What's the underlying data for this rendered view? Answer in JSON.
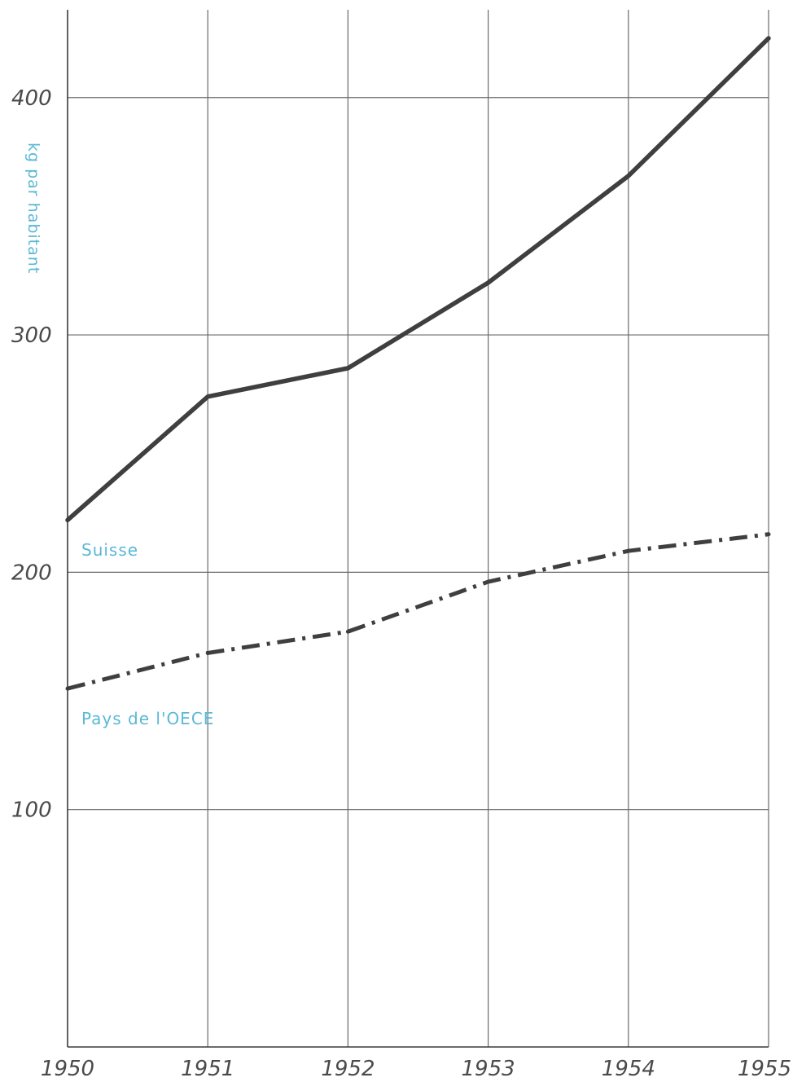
{
  "chart_data": {
    "type": "line",
    "title": "",
    "xlabel": "",
    "ylabel": "kg par habitant",
    "x": [
      1950,
      1951,
      1952,
      1953,
      1954,
      1955
    ],
    "x_tick_labels": [
      "1950",
      "1951",
      "1952",
      "1953",
      "1954",
      "1955"
    ],
    "y_ticks": [
      100,
      200,
      300,
      400
    ],
    "y_tick_labels": [
      "100",
      "200",
      "300",
      "400"
    ],
    "xlim": [
      1950,
      1955
    ],
    "ylim": [
      0,
      437
    ],
    "grid": true,
    "series": [
      {
        "name": "Suisse",
        "values": [
          222,
          274,
          286,
          322,
          367,
          425
        ],
        "style": "solid",
        "color": "#3f3f3f"
      },
      {
        "name": "Pays de l'OECE",
        "values": [
          151,
          166,
          175,
          196,
          209,
          216
        ],
        "style": "dash-dot",
        "color": "#3f3f3f"
      }
    ],
    "label_color": "#5bb8d6"
  }
}
